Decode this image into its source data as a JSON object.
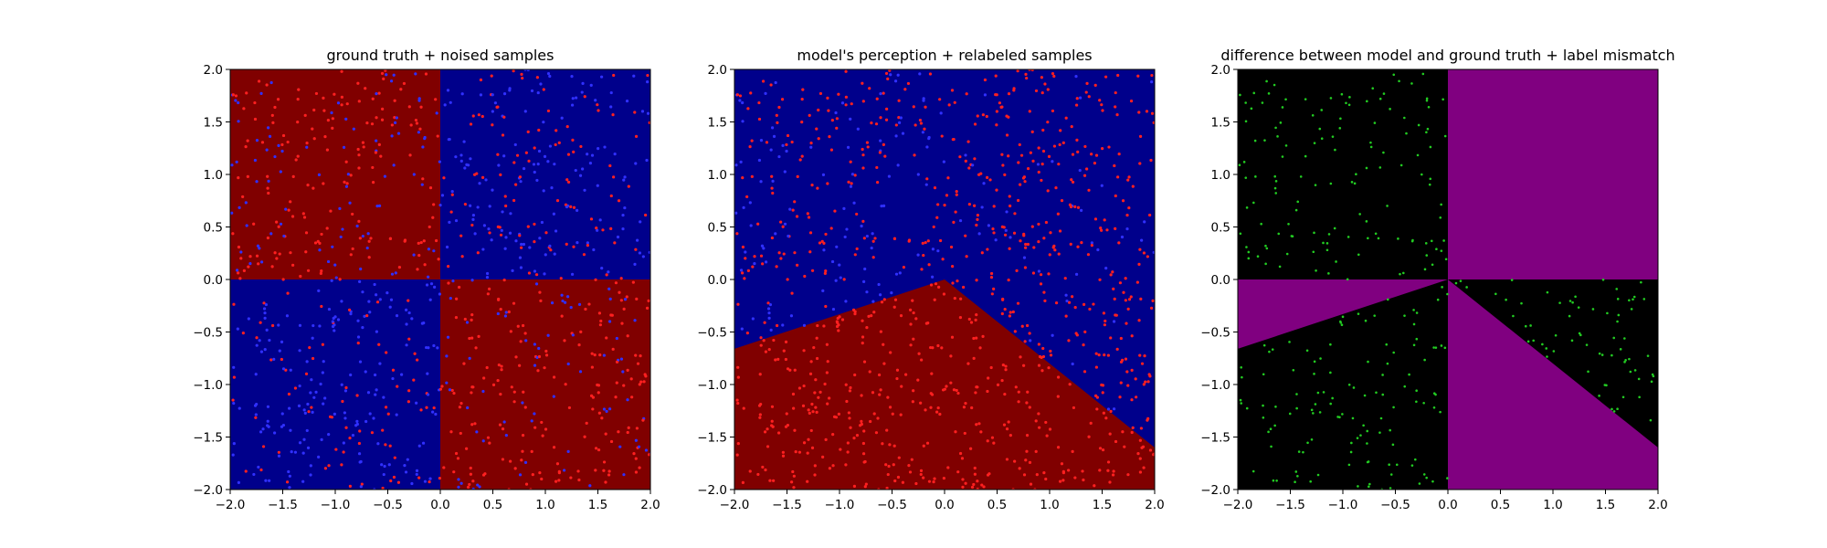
{
  "chart_data": [
    {
      "type": "scatter",
      "title": "ground truth + noised samples",
      "xlabel": "",
      "ylabel": "",
      "xlim": [
        -2.0,
        2.0
      ],
      "ylim": [
        -2.0,
        2.0
      ],
      "xticks": [
        "−2.0",
        "−1.5",
        "−1.0",
        "−0.5",
        "0.0",
        "0.5",
        "1.0",
        "1.5",
        "2.0"
      ],
      "yticks": [
        "−2.0",
        "−1.5",
        "−1.0",
        "−0.5",
        "0.0",
        "0.5",
        "1.0",
        "1.5",
        "2.0"
      ],
      "background": "quadrants: x<0,y>0 dark red; x>0,y<0 dark red; x>0,y>0 navy; x<0,y<0 navy",
      "grid": false,
      "samples": "about 1000 points uniform-ish in [-2,2]^2, colored red or blue (ground-truth XOR label with noise)",
      "point_colors": [
        "#ff2020",
        "#3030ff"
      ]
    },
    {
      "type": "scatter",
      "title": "model's perception + relabeled samples",
      "xlabel": "",
      "ylabel": "",
      "xlim": [
        -2.0,
        2.0
      ],
      "ylim": [
        -2.0,
        2.0
      ],
      "xticks": [
        "−2.0",
        "−1.5",
        "−1.0",
        "−0.5",
        "0.0",
        "0.5",
        "1.0",
        "1.5",
        "2.0"
      ],
      "yticks": [
        "−2.0",
        "−1.5",
        "−1.0",
        "−0.5",
        "0.0",
        "0.5",
        "1.0",
        "1.5",
        "2.0"
      ],
      "background": "dark red wedge below lines y=0.33x (x<0) and y=-0.8x (x>0) from apex (0,0); navy elsewhere",
      "decision_boundary": [
        [
          -2.0,
          -0.66
        ],
        [
          0.0,
          0.0
        ],
        [
          2.0,
          -1.6
        ]
      ],
      "grid": false,
      "samples": "about 1000 points, red inside red wedge, blue-ish left cluster, red above-right",
      "point_colors": [
        "#ff2020",
        "#3030ff"
      ]
    },
    {
      "type": "scatter",
      "title": "difference between model and ground truth + label mismatch",
      "xlabel": "",
      "ylabel": "",
      "xlim": [
        -2.0,
        2.0
      ],
      "ylim": [
        -2.0,
        2.0
      ],
      "xticks": [
        "−2.0",
        "−1.5",
        "−1.0",
        "−0.5",
        "0.0",
        "0.5",
        "1.0",
        "1.5",
        "2.0"
      ],
      "yticks": [
        "−2.0",
        "−1.5",
        "−1.0",
        "−0.5",
        "0.0",
        "0.5",
        "1.0",
        "1.5",
        "2.0"
      ],
      "background": "black base; purple where model and ground truth disagree: upper-right quadrant, wedge between y=0 and y=0.33x for x<0, wedge between y=-0.8x and x=0 below axis for x>0",
      "grid": false,
      "samples": "a few hundred green mismatch points",
      "point_colors": [
        "#22cc22"
      ]
    }
  ],
  "colors": {
    "dark_red": "#800000",
    "navy": "#00008b",
    "purple": "#800080",
    "black": "#000000",
    "red_point": "#ff2020",
    "blue_point": "#3030ff",
    "green_point": "#22cc22"
  }
}
